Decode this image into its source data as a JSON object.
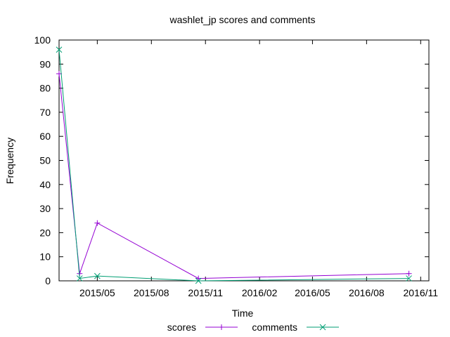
{
  "chart_data": {
    "type": "line",
    "title": "washlet_jp scores and comments",
    "xlabel": "Time",
    "ylabel": "Frequency",
    "ylim": [
      0,
      100
    ],
    "xlim": [
      "2015-02-25",
      "2016-11-15"
    ],
    "y_ticks": [
      0,
      10,
      20,
      30,
      40,
      50,
      60,
      70,
      80,
      90,
      100
    ],
    "x_ticks": [
      {
        "date": "2015-05-01",
        "label": "2015/05"
      },
      {
        "date": "2015-08-01",
        "label": "2015/08"
      },
      {
        "date": "2015-11-01",
        "label": "2015/11"
      },
      {
        "date": "2016-02-01",
        "label": "2016/02"
      },
      {
        "date": "2016-05-01",
        "label": "2016/05"
      },
      {
        "date": "2016-08-01",
        "label": "2016/08"
      },
      {
        "date": "2016-11-01",
        "label": "2016/11"
      }
    ],
    "series": [
      {
        "name": "scores",
        "color": "#9400d3",
        "marker": "plus",
        "points": [
          {
            "x": "2015-02-25",
            "y": 86
          },
          {
            "x": "2015-04-01",
            "y": 3
          },
          {
            "x": "2015-05-01",
            "y": 24
          },
          {
            "x": "2015-10-20",
            "y": 1
          },
          {
            "x": "2016-10-12",
            "y": 3
          }
        ]
      },
      {
        "name": "comments",
        "color": "#009e73",
        "marker": "cross",
        "points": [
          {
            "x": "2015-02-25",
            "y": 96
          },
          {
            "x": "2015-04-01",
            "y": 1
          },
          {
            "x": "2015-05-01",
            "y": 2
          },
          {
            "x": "2015-10-20",
            "y": 0
          },
          {
            "x": "2016-10-12",
            "y": 1
          }
        ]
      }
    ],
    "grid": false,
    "legend": "bottom"
  }
}
